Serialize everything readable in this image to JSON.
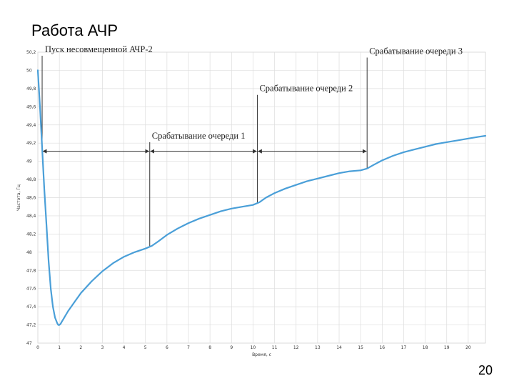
{
  "slide": {
    "title": "Работа АЧР",
    "page_number": "20"
  },
  "chart_data": {
    "type": "line",
    "xlabel": "Время, с",
    "ylabel": "Частота, Гц",
    "xlim": [
      0,
      20.8
    ],
    "ylim": [
      47,
      50.2
    ],
    "x_ticks": [
      "0",
      "1",
      "2",
      "3",
      "4",
      "5",
      "6",
      "7",
      "8",
      "9",
      "10",
      "11",
      "12",
      "13",
      "14",
      "15",
      "16",
      "17",
      "18",
      "19",
      "20"
    ],
    "y_ticks": [
      "47",
      "47,2",
      "47,4",
      "47,6",
      "47,8",
      "48",
      "48,2",
      "48,4",
      "48,6",
      "48,8",
      "49",
      "49,2",
      "49,4",
      "49,6",
      "49,8",
      "50",
      "50,2"
    ],
    "grid": true,
    "series": [
      {
        "color": "#4a9fd8",
        "x": [
          0,
          0.1,
          0.2,
          0.3,
          0.4,
          0.5,
          0.6,
          0.7,
          0.8,
          0.9,
          0.95,
          1.0,
          1.05,
          1.1,
          1.2,
          1.4,
          1.7,
          2.0,
          2.5,
          3.0,
          3.5,
          4.0,
          4.5,
          5.0,
          5.3,
          5.6,
          6.0,
          6.5,
          7.0,
          7.5,
          8.0,
          8.5,
          9.0,
          9.5,
          10.0,
          10.3,
          10.6,
          11.0,
          11.5,
          12.0,
          12.5,
          13.0,
          13.5,
          14.0,
          14.5,
          15.0,
          15.3,
          15.6,
          16.0,
          16.5,
          17.0,
          17.5,
          18.0,
          18.5,
          19.0,
          19.5,
          20.0,
          20.5,
          20.8
        ],
        "y": [
          50.0,
          49.6,
          49.15,
          48.7,
          48.3,
          47.9,
          47.6,
          47.4,
          47.28,
          47.22,
          47.2,
          47.2,
          47.21,
          47.23,
          47.27,
          47.35,
          47.45,
          47.55,
          47.68,
          47.79,
          47.88,
          47.95,
          48.0,
          48.04,
          48.07,
          48.12,
          48.19,
          48.26,
          48.32,
          48.37,
          48.41,
          48.45,
          48.48,
          48.5,
          48.52,
          48.55,
          48.6,
          48.65,
          48.7,
          48.74,
          48.78,
          48.81,
          48.84,
          48.87,
          48.89,
          48.9,
          48.92,
          48.96,
          49.01,
          49.06,
          49.1,
          49.13,
          49.16,
          49.19,
          49.21,
          49.23,
          49.25,
          49.27,
          49.28
        ]
      }
    ],
    "markers": [
      {
        "x": 0.2,
        "label": "Пуск несовмещенной АЧР-2",
        "label_y": 50.2
      },
      {
        "x": 5.2,
        "label": "Срабатывание очереди 1",
        "label_y": 49.25
      },
      {
        "x": 10.2,
        "label": "Срабатывание очереди 2",
        "label_y": 49.77
      },
      {
        "x": 15.3,
        "label": "Срабатывание очереди 3",
        "label_y": 50.18
      }
    ],
    "interval_arrow_y": 49.11
  }
}
